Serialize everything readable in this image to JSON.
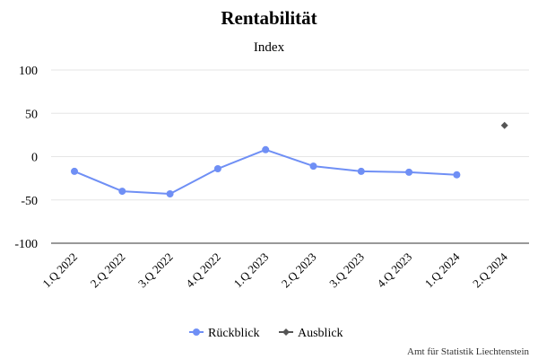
{
  "chart_data": {
    "type": "line",
    "title": "Rentabilität",
    "subtitle": "Index",
    "categories": [
      "1.Q 2022",
      "2.Q 2022",
      "3.Q 2022",
      "4.Q 2022",
      "1.Q 2023",
      "2.Q 2023",
      "3.Q 2023",
      "4.Q 2023",
      "1.Q 2024",
      "2.Q 2024"
    ],
    "y_ticks": [
      100,
      50,
      0,
      -50,
      -100
    ],
    "ylim": [
      -100,
      100
    ],
    "grid": true,
    "legend_position": "bottom",
    "series": [
      {
        "name": "Rückblick",
        "color": "#6f8ff5",
        "marker": "circle",
        "values": [
          -17,
          -40,
          -43,
          -14,
          8,
          -11,
          -17,
          -18,
          -21,
          null
        ]
      },
      {
        "name": "Ausblick",
        "color": "#555555",
        "marker": "diamond",
        "values": [
          null,
          null,
          null,
          null,
          null,
          null,
          null,
          null,
          null,
          36
        ]
      }
    ],
    "credits": "Amt für Statistik Liechtenstein"
  }
}
